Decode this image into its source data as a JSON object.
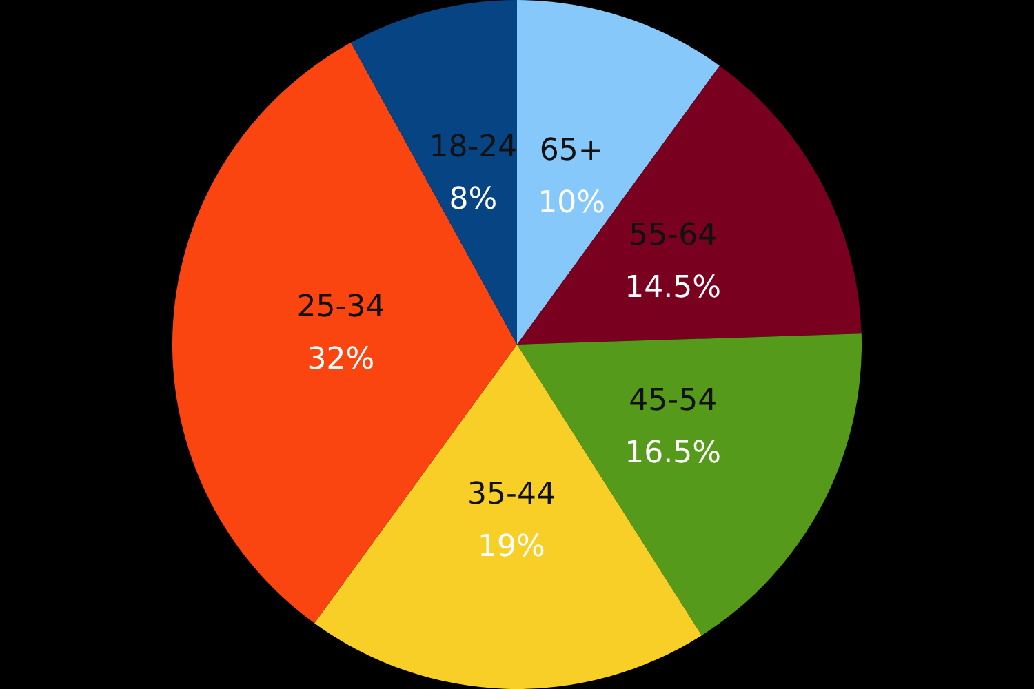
{
  "chart_data": {
    "type": "pie",
    "categories": [
      "65+",
      "55-64",
      "45-54",
      "35-44",
      "25-34",
      "18-24"
    ],
    "values": [
      10,
      14.5,
      16.5,
      19,
      32,
      8
    ],
    "colors": [
      "#87c8fb",
      "#7a0020",
      "#559a1a",
      "#f8cf26",
      "#fb4511",
      "#064484"
    ],
    "value_labels": [
      "10%",
      "14.5%",
      "16.5%",
      "19%",
      "32%",
      "8%"
    ],
    "legend": false
  }
}
